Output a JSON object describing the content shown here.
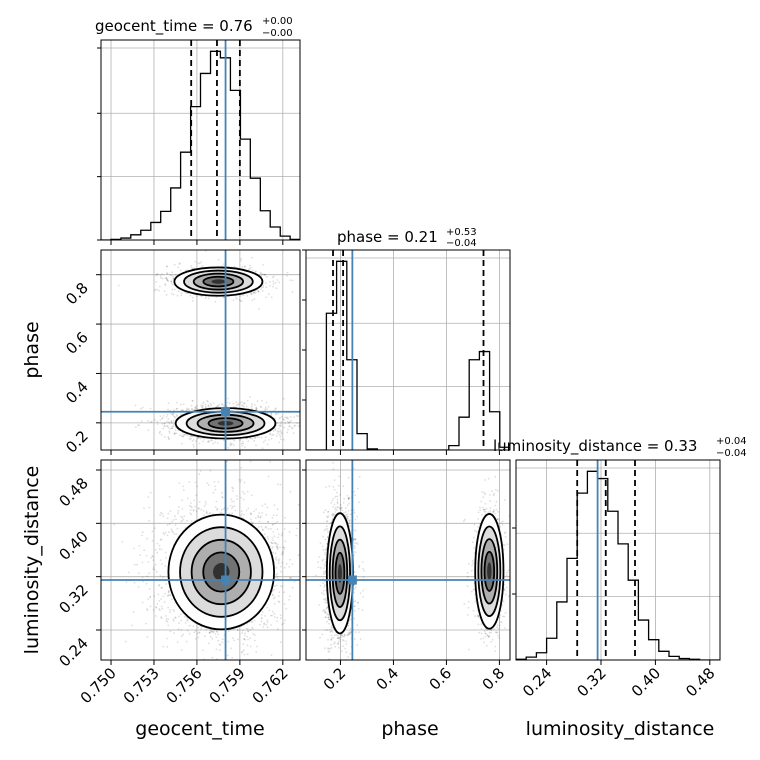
{
  "chart_data": {
    "type": "corner",
    "parameters": [
      "geocent_time",
      "phase",
      "luminosity_distance"
    ],
    "truths": {
      "geocent_time": 0.758,
      "phase": 0.245,
      "luminosity_distance": 0.315
    },
    "colors": {
      "truth": "#4682b4",
      "hist": "#000000",
      "grid": "#b0b0b0"
    },
    "grid": true,
    "diagonal": [
      {
        "param": "geocent_time",
        "title_label": "geocent_time = 0.76",
        "title_plus": "+0.00",
        "title_minus": "−0.00",
        "xlim": [
          0.7493,
          0.7632
        ],
        "quantiles": [
          0.7556,
          0.7574,
          0.759
        ],
        "bin_edges": [
          0.7493,
          0.74999,
          0.75069,
          0.75138,
          0.75208,
          0.75278,
          0.75347,
          0.75417,
          0.75486,
          0.75556,
          0.75625,
          0.75695,
          0.75764,
          0.75834,
          0.75904,
          0.75973,
          0.76043,
          0.76112,
          0.76182,
          0.76251,
          0.7632
        ],
        "counts": [
          0,
          1,
          3,
          8,
          15,
          27,
          44,
          80,
          135,
          205,
          256,
          290,
          280,
          230,
          155,
          95,
          45,
          20,
          6,
          1
        ]
      },
      {
        "param": "phase",
        "title_label": "phase = 0.21",
        "title_plus": "+0.53",
        "title_minus": "−0.04",
        "xlim": [
          0.07,
          0.84
        ],
        "quantiles": [
          0.172,
          0.21,
          0.74
        ],
        "bin_edges": [
          0.07,
          0.1085,
          0.147,
          0.1855,
          0.224,
          0.2625,
          0.301,
          0.3395,
          0.378,
          0.4165,
          0.455,
          0.4935,
          0.532,
          0.5705,
          0.609,
          0.6475,
          0.686,
          0.7245,
          0.763,
          0.8015,
          0.84
        ],
        "counts": [
          0,
          0,
          250,
          345,
          165,
          30,
          2,
          0,
          0,
          0,
          0,
          0,
          0,
          0,
          8,
          60,
          165,
          180,
          70,
          5
        ]
      },
      {
        "param": "luminosity_distance",
        "title_label": "luminosity_distance = 0.33",
        "title_plus": "+0.04",
        "title_minus": "−0.04",
        "xlim": [
          0.195,
          0.495
        ],
        "quantiles": [
          0.285,
          0.327,
          0.37
        ],
        "bin_edges": [
          0.195,
          0.21,
          0.225,
          0.24,
          0.255,
          0.27,
          0.285,
          0.3,
          0.315,
          0.33,
          0.345,
          0.36,
          0.375,
          0.39,
          0.405,
          0.42,
          0.435,
          0.45,
          0.465,
          0.48,
          0.495
        ],
        "counts": [
          1,
          4,
          10,
          30,
          80,
          140,
          230,
          260,
          250,
          205,
          160,
          110,
          55,
          28,
          12,
          5,
          2,
          1,
          0,
          0
        ]
      }
    ],
    "axes": {
      "geocent_time": {
        "label": "geocent_time",
        "ticks": [
          0.75,
          0.753,
          0.756,
          0.759,
          0.762
        ],
        "tick_labels": [
          "0.750",
          "0.753",
          "0.756",
          "0.759",
          "0.762"
        ]
      },
      "phase": {
        "label": "phase",
        "ylim": [
          0.09,
          0.9
        ],
        "xlim": [
          0.07,
          0.84
        ],
        "ticks": [
          0.2,
          0.4,
          0.6,
          0.8
        ],
        "tick_labels": [
          "0.2",
          "0.4",
          "0.6",
          "0.8"
        ]
      },
      "luminosity_distance": {
        "label": "luminosity_distance",
        "ylim": [
          0.195,
          0.495
        ],
        "xlim": [
          0.195,
          0.495
        ],
        "ticks": [
          0.24,
          0.32,
          0.4,
          0.48
        ],
        "tick_labels": [
          "0.24",
          "0.32",
          "0.40",
          "0.48"
        ]
      }
    },
    "hist_y_grid_fractions": [
      0.33,
      0.66,
      1.0
    ],
    "off_diagonal": [
      {
        "x": "geocent_time",
        "y": "phase",
        "clusters": [
          {
            "cx": 0.7575,
            "cy": 0.772,
            "sx": 0.0015,
            "sy": 0.028,
            "n": 900
          },
          {
            "cx": 0.758,
            "cy": 0.198,
            "sx": 0.0017,
            "sy": 0.03,
            "n": 1900
          }
        ]
      },
      {
        "x": "geocent_time",
        "y": "luminosity_distance",
        "clusters": [
          {
            "cx": 0.7577,
            "cy": 0.327,
            "sx": 0.0018,
            "sy": 0.042,
            "n": 2800
          }
        ]
      },
      {
        "x": "phase",
        "y": "luminosity_distance",
        "clusters": [
          {
            "cx": 0.198,
            "cy": 0.325,
            "sx": 0.024,
            "sy": 0.044,
            "n": 1900
          },
          {
            "cx": 0.762,
            "cy": 0.328,
            "sx": 0.026,
            "sy": 0.042,
            "n": 900
          }
        ]
      }
    ]
  }
}
